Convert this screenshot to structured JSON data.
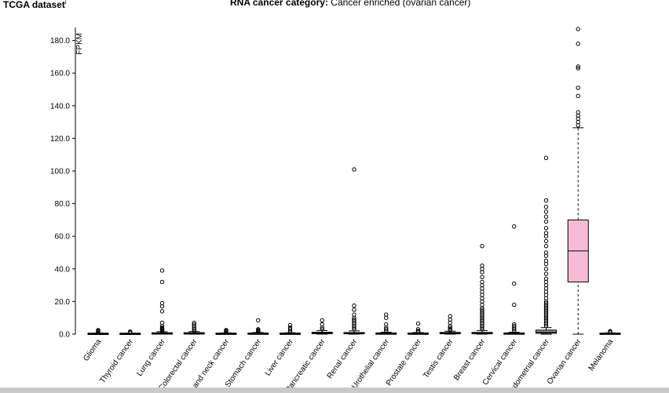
{
  "header": {
    "dataset_title": "TCGA dataset",
    "dataset_sup": "i",
    "category_label": "RNA cancer category:",
    "category_value": "Cancer enriched (ovarian cancer)"
  },
  "colors": {
    "box_default": "#999999",
    "box_highlight": "#f7bbd9",
    "outline": "#000000",
    "bottom_bar": "#c9c9c9"
  },
  "chart_data": {
    "type": "box",
    "ylabel": "FPKM",
    "ylim": [
      0,
      188
    ],
    "yticks": [
      0,
      20,
      40,
      60,
      80,
      100,
      120,
      140,
      160,
      180
    ],
    "ytick_labels": [
      "0.0",
      "20.0",
      "40.0",
      "60.0",
      "80.0",
      "100.0",
      "120.0",
      "140.0",
      "160.0",
      "180.0"
    ],
    "highlight_category": "Ovarian cancer",
    "categories": [
      "Glioma",
      "Thyroid cancer",
      "Lung cancer",
      "Colorectal cancer",
      "Head and neck cancer",
      "Stomach cancer",
      "Liver cancer",
      "Pancreatic cancer",
      "Renal cancer",
      "Urothelial cancer",
      "Prostate cancer",
      "Testis cancer",
      "Breast cancer",
      "Cervical cancer",
      "Endometrial cancer",
      "Ovarian cancer",
      "Melanoma"
    ],
    "boxes": [
      {
        "q1": 0.1,
        "median": 0.2,
        "q3": 0.3,
        "whisker_low": 0,
        "whisker_high": 0.7,
        "outliers": [
          1.0,
          1.5,
          2.0,
          2.5
        ]
      },
      {
        "q1": 0.1,
        "median": 0.2,
        "q3": 0.3,
        "whisker_low": 0,
        "whisker_high": 0.6,
        "outliers": [
          0.8,
          1.2,
          1.6
        ]
      },
      {
        "q1": 0.2,
        "median": 0.4,
        "q3": 0.7,
        "whisker_low": 0,
        "whisker_high": 1.5,
        "outliers": [
          2,
          2.5,
          3,
          3.5,
          4,
          5,
          7,
          14,
          17,
          19,
          32,
          39
        ]
      },
      {
        "q1": 0.2,
        "median": 0.4,
        "q3": 0.8,
        "whisker_low": 0,
        "whisker_high": 1.6,
        "outliers": [
          2,
          3,
          4,
          5,
          6,
          7
        ]
      },
      {
        "q1": 0.1,
        "median": 0.2,
        "q3": 0.4,
        "whisker_low": 0,
        "whisker_high": 0.8,
        "outliers": [
          1,
          1.5,
          2,
          2.5
        ]
      },
      {
        "q1": 0.1,
        "median": 0.3,
        "q3": 0.5,
        "whisker_low": 0,
        "whisker_high": 1.0,
        "outliers": [
          1.5,
          2,
          2.5,
          3,
          8.5
        ]
      },
      {
        "q1": 0.1,
        "median": 0.2,
        "q3": 0.4,
        "whisker_low": 0,
        "whisker_high": 0.9,
        "outliers": [
          1.2,
          2,
          3,
          4,
          5.5
        ]
      },
      {
        "q1": 0.3,
        "median": 0.7,
        "q3": 1.2,
        "whisker_low": 0,
        "whisker_high": 2.2,
        "outliers": [
          3,
          4,
          6,
          8.5
        ]
      },
      {
        "q1": 0.2,
        "median": 0.5,
        "q3": 1.0,
        "whisker_low": 0,
        "whisker_high": 2.0,
        "outliers": [
          3,
          4,
          5,
          6,
          7,
          8,
          9,
          10,
          12,
          15,
          17.5,
          101
        ]
      },
      {
        "q1": 0.1,
        "median": 0.3,
        "q3": 0.6,
        "whisker_low": 0,
        "whisker_high": 1.2,
        "outliers": [
          2,
          3,
          4,
          6,
          10,
          12
        ]
      },
      {
        "q1": 0.1,
        "median": 0.3,
        "q3": 0.5,
        "whisker_low": 0,
        "whisker_high": 1.0,
        "outliers": [
          1.5,
          2,
          3,
          6.5
        ]
      },
      {
        "q1": 0.3,
        "median": 0.6,
        "q3": 1.0,
        "whisker_low": 0,
        "whisker_high": 1.8,
        "outliers": [
          2.5,
          3,
          4,
          5,
          7,
          9,
          11
        ]
      },
      {
        "q1": 0.2,
        "median": 0.6,
        "q3": 1.1,
        "whisker_low": 0,
        "whisker_high": 2.2,
        "outliers": [
          3,
          4,
          5,
          6,
          7,
          8,
          9,
          10,
          11,
          12,
          13,
          14,
          15,
          16,
          18,
          20,
          22,
          24,
          26,
          28,
          30,
          32,
          35,
          38,
          40,
          42,
          54
        ]
      },
      {
        "q1": 0.1,
        "median": 0.3,
        "q3": 0.6,
        "whisker_low": 0,
        "whisker_high": 1.2,
        "outliers": [
          2,
          3,
          4,
          5,
          6,
          18,
          31,
          66
        ]
      },
      {
        "q1": 0.5,
        "median": 1.2,
        "q3": 2.5,
        "whisker_low": 0,
        "whisker_high": 4.0,
        "outliers": [
          5,
          6,
          7,
          8,
          9,
          10,
          11,
          12,
          13,
          14,
          15,
          16,
          17,
          18,
          19,
          20,
          22,
          24,
          26,
          28,
          30,
          32,
          34,
          37,
          40,
          43,
          45,
          48,
          50,
          54,
          57,
          60,
          62,
          65,
          69,
          72,
          75,
          78,
          82,
          108
        ]
      },
      {
        "q1": 32,
        "median": 51,
        "q3": 70,
        "whisker_low": 0,
        "whisker_high": 126.5,
        "outliers": [
          128,
          130,
          132,
          134,
          136,
          146,
          151,
          163,
          164,
          178,
          187
        ]
      },
      {
        "q1": 0.1,
        "median": 0.2,
        "q3": 0.4,
        "whisker_low": 0,
        "whisker_high": 0.8,
        "outliers": [
          1.0,
          1.4,
          1.8
        ]
      }
    ]
  }
}
